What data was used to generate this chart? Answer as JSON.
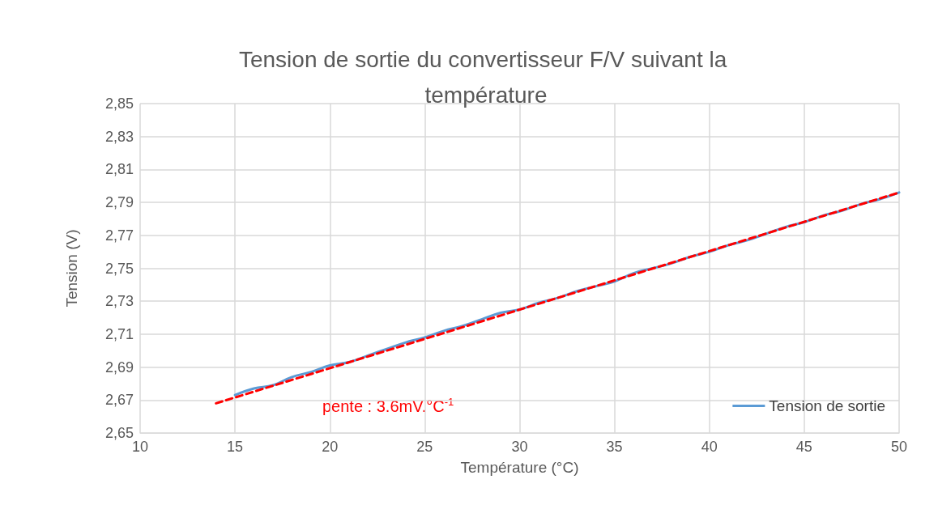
{
  "chart_data": {
    "type": "line",
    "title": "Tension de sortie du convertisseur F/V suivant la température",
    "xlabel": "Température (°C)",
    "ylabel": "Tension (V)",
    "annotations": [
      "pente : 3.6mV.°C$^{-1}$"
    ],
    "series": [
      {
        "name": "Tension de sortie",
        "color": "#5b9bd5",
        "x": [
          15,
          16,
          17,
          18,
          19,
          20,
          21,
          22,
          23,
          24,
          25,
          26,
          27,
          28,
          29,
          30,
          31,
          32,
          33,
          34,
          35,
          36,
          37,
          38,
          39,
          40,
          41,
          42,
          43,
          44,
          45,
          46,
          47,
          48,
          49,
          50
        ],
        "values": [
          2.673,
          2.677,
          2.679,
          2.684,
          2.687,
          2.691,
          2.693,
          2.697,
          2.701,
          2.705,
          2.708,
          2.712,
          2.715,
          2.719,
          2.723,
          2.725,
          2.729,
          2.732,
          2.736,
          2.739,
          2.742,
          2.747,
          2.75,
          2.753,
          2.757,
          2.76,
          2.764,
          2.767,
          2.771,
          2.775,
          2.778,
          2.782,
          2.785,
          2.789,
          2.792,
          2.796
        ],
        "line_style": "solid"
      },
      {
        "type": "line",
        "color": "#ff0000",
        "x": [
          14,
          50
        ],
        "values": [
          2.668,
          2.796
        ],
        "line_style": "dashed"
      }
    ],
    "xlim": [
      10,
      50
    ],
    "xticks": [
      10,
      15,
      20,
      25,
      30,
      35,
      40,
      45,
      50
    ],
    "ylim": [
      2.65,
      2.85
    ],
    "yticks": [
      {
        "value": 2.65,
        "label": "2,65"
      },
      {
        "value": 2.67,
        "label": "2,67"
      },
      {
        "value": 2.69,
        "label": "2,69"
      },
      {
        "value": 2.71,
        "label": "2,71"
      },
      {
        "value": 2.73,
        "label": "2,73"
      },
      {
        "value": 2.75,
        "label": "2,75"
      },
      {
        "value": 2.77,
        "label": "2,77"
      },
      {
        "value": 2.79,
        "label": "2,79"
      },
      {
        "value": 2.81,
        "label": "2,81"
      },
      {
        "value": 2.83,
        "label": "2,83"
      },
      {
        "value": 2.85,
        "label": "2,85"
      }
    ],
    "grid": true,
    "legend": "bottom right",
    "marker": "none"
  }
}
